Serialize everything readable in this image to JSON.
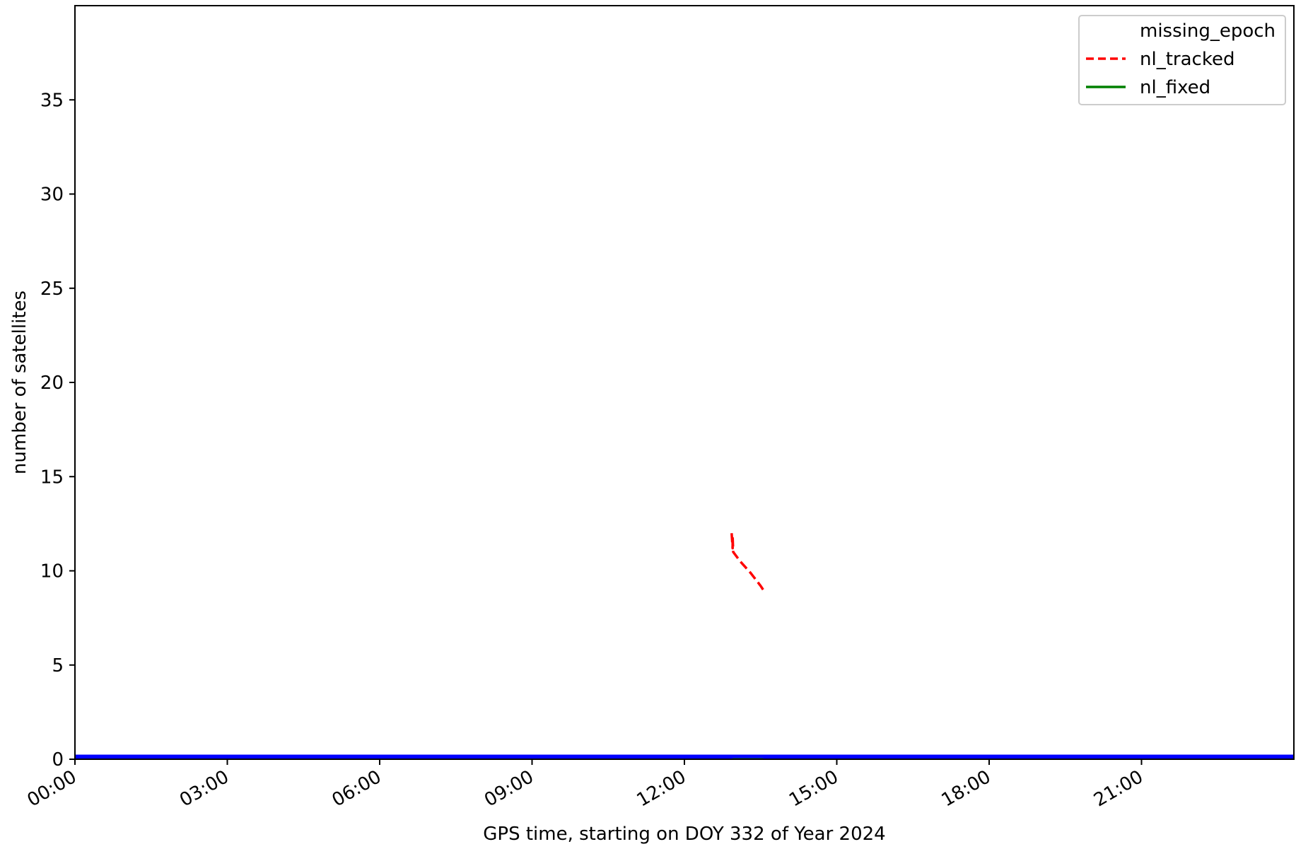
{
  "chart_data": {
    "type": "line",
    "title": "",
    "xlabel": "GPS time, starting on DOY 332 of Year 2024",
    "ylabel": "number of satellites",
    "xlim": [
      0,
      24
    ],
    "ylim": [
      0,
      40
    ],
    "x_unit": "hours",
    "x_tick_values": [
      0,
      3,
      6,
      9,
      12,
      15,
      18,
      21
    ],
    "x_tick_labels": [
      "00:00",
      "03:00",
      "06:00",
      "09:00",
      "12:00",
      "15:00",
      "18:00",
      "21:00"
    ],
    "y_tick_values": [
      0,
      5,
      10,
      15,
      20,
      25,
      30,
      35
    ],
    "y_tick_labels": [
      "0",
      "5",
      "10",
      "15",
      "20",
      "25",
      "30",
      "35"
    ],
    "grid": false,
    "legend_position": "top-right",
    "series": [
      {
        "name": "missing_epoch",
        "color": "#0000ff",
        "style": "solid-thick",
        "x": [
          0,
          24
        ],
        "y": [
          0,
          0
        ]
      },
      {
        "name": "nl_tracked",
        "color": "#ff0000",
        "style": "dashed",
        "x": [
          12.93,
          12.94,
          12.95,
          12.95,
          12.96,
          13.1,
          13.3,
          13.5,
          13.55
        ],
        "y": [
          12,
          11.6,
          11.2,
          11.8,
          11,
          10.5,
          9.9,
          9.2,
          9
        ]
      },
      {
        "name": "nl_fixed",
        "color": "#008000",
        "style": "solid",
        "x": [
          12.95,
          13.55
        ],
        "y": [
          0,
          0
        ]
      }
    ]
  }
}
